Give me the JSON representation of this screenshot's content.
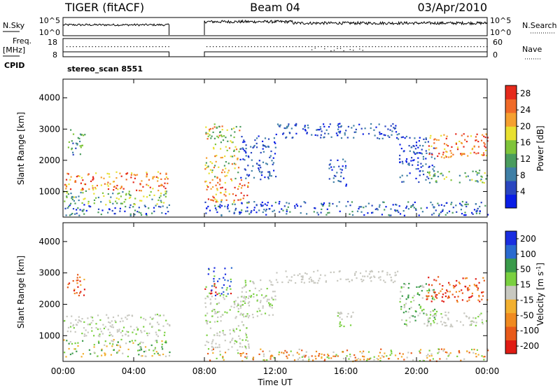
{
  "header": {
    "radar": "TIGER (fitACF)",
    "beam": "Beam 04",
    "date": "03/Apr/2010"
  },
  "strip_labels": {
    "nsky": "N.Sky",
    "nsky_top": "10^5",
    "nsky_bottom": "10^0",
    "nsearch_top": "10^5",
    "nsearch_bottom": "10^0",
    "nsearch": "N.Search",
    "freq_top": "Freq.",
    "freq_unit": "[MHz]",
    "freq_high": "18",
    "freq_low": "8",
    "nave_high": "60",
    "nave_low": "0",
    "nave": "Nave",
    "cpid": "CPID",
    "cpid_value": "stereo_scan 8551"
  },
  "chart_data": [
    {
      "type": "heatmap",
      "title": "",
      "quantity": "Power",
      "ylabel": "Slant Range [km]",
      "xlabel": "",
      "x_ticks": [
        "00:00",
        "04:00",
        "08:00",
        "12:00",
        "16:00",
        "20:00",
        "00:00"
      ],
      "x_range_hours": [
        0,
        24
      ],
      "y_range_km": [
        180,
        4600
      ],
      "y_ticks": [
        "1000",
        "2000",
        "3000",
        "4000"
      ],
      "colorbar": {
        "label": "Power [dB]",
        "ticks": [
          "4",
          "8",
          "12",
          "16",
          "20",
          "24",
          "28"
        ],
        "range": [
          0,
          30
        ],
        "colors": [
          "#0a1ee6",
          "#2a46c0",
          "#3f7fa6",
          "#4a9c5e",
          "#7fc43a",
          "#e8e030",
          "#f5a030",
          "#f06a28",
          "#e52a1c"
        ]
      },
      "data_gap_hours": [
        6,
        8
      ]
    },
    {
      "type": "heatmap",
      "title": "",
      "quantity": "Velocity",
      "ylabel": "Slant Range [km]",
      "xlabel": "Time UT",
      "x_ticks": [
        "00:00",
        "04:00",
        "08:00",
        "12:00",
        "16:00",
        "20:00",
        "00:00"
      ],
      "x_range_hours": [
        0,
        24
      ],
      "y_range_km": [
        180,
        4600
      ],
      "y_ticks": [
        "1000",
        "2000",
        "3000",
        "4000"
      ],
      "colorbar": {
        "label": "Velocity [m s",
        "label_sup": "-1",
        "label_end": "]",
        "ticks": [
          "200",
          "100",
          "50",
          "15",
          "-15",
          "-50",
          "-100",
          "-200"
        ],
        "colors": [
          "#1a2ee0",
          "#2a6ad0",
          "#3a9a4a",
          "#7ad040",
          "#c8c8c0",
          "#f2b030",
          "#f08a20",
          "#e85a1a",
          "#e01c14"
        ]
      },
      "data_gap_hours": [
        6,
        8
      ]
    }
  ]
}
